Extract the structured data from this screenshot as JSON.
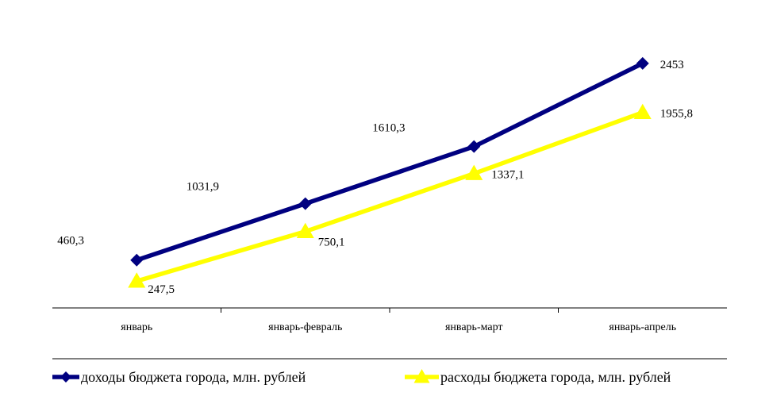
{
  "chart_data": {
    "type": "line",
    "categories": [
      "январь",
      "январь-февраль",
      "январь-март",
      "январь-апрель"
    ],
    "series": [
      {
        "name": "доходы бюджета города, млн. рублей",
        "values": [
          460.3,
          1031.9,
          1610.3,
          2453
        ],
        "labels": [
          "460,3",
          "1031,9",
          "1610,3",
          "2453"
        ],
        "color": "#000080",
        "marker": "diamond"
      },
      {
        "name": "расходы бюджета города, млн. рублей",
        "values": [
          247.5,
          750.1,
          1337.1,
          1955.8
        ],
        "labels": [
          "247,5",
          "750,1",
          "1337,1",
          "1955,8"
        ],
        "color": "#FFFF00",
        "marker": "triangle"
      }
    ],
    "title": "",
    "xlabel": "",
    "ylabel": "",
    "grid": false,
    "legend": "bottom"
  }
}
